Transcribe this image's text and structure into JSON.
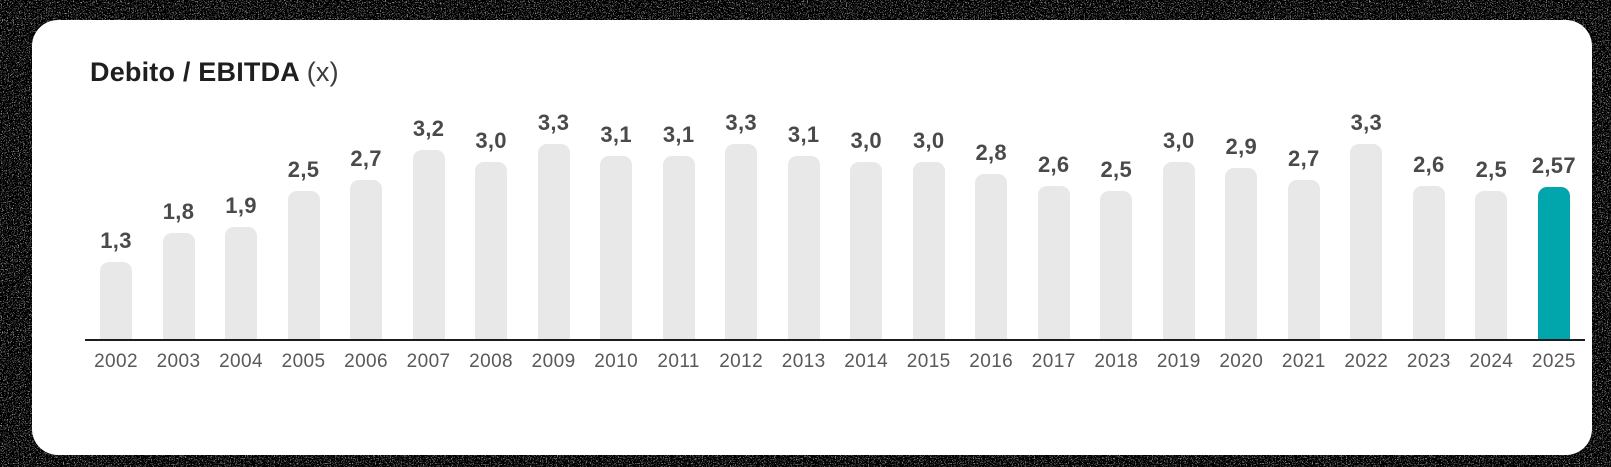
{
  "page": {
    "background_color": "#000000"
  },
  "card": {
    "title": "Debito / EBITDA",
    "title_suffix": "(x)"
  },
  "chart_data": {
    "type": "bar",
    "title": "Debito / EBITDA (x)",
    "categories": [
      "2002",
      "2003",
      "2004",
      "2005",
      "2006",
      "2007",
      "2008",
      "2009",
      "2010",
      "2011",
      "2012",
      "2013",
      "2014",
      "2015",
      "2016",
      "2017",
      "2018",
      "2019",
      "2020",
      "2021",
      "2022",
      "2023",
      "2024",
      "2025"
    ],
    "values": [
      1.3,
      1.8,
      1.9,
      2.5,
      2.7,
      3.2,
      3.0,
      3.3,
      3.1,
      3.1,
      3.3,
      3.1,
      3.0,
      3.0,
      2.8,
      2.6,
      2.5,
      3.0,
      2.9,
      2.7,
      3.3,
      2.6,
      2.5,
      2.57
    ],
    "value_labels": [
      "1,3",
      "1,8",
      "1,9",
      "2,5",
      "2,7",
      "3,2",
      "3,0",
      "3,3",
      "3,1",
      "3,1",
      "3,3",
      "3,1",
      "3,0",
      "3,0",
      "2,8",
      "2,6",
      "2,5",
      "3,0",
      "2,9",
      "2,7",
      "3,3",
      "2,6",
      "2,5",
      "2,57"
    ],
    "highlight_index": 23,
    "highlight_category": "2025",
    "xlabel": "",
    "ylabel": "",
    "ylim": [
      0,
      3.5
    ],
    "grid": false,
    "legend": false,
    "decimal_separator": ",",
    "colors": {
      "bar": "#e8e8e8",
      "highlight_bar": "#00a6ac",
      "value_label": "#4a4a4a",
      "year_label": "#595959",
      "axis": "#1c1c1c",
      "title": "#1f1f1f",
      "card_bg": "#ffffff"
    }
  }
}
